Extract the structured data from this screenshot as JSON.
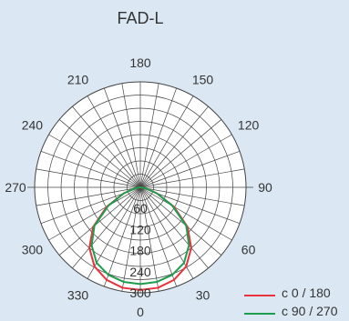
{
  "chart_data": {
    "type": "polar",
    "title": "FAD-L",
    "angle_ticks": [
      "0",
      "30",
      "60",
      "90",
      "120",
      "150",
      "180",
      "210",
      "240",
      "270",
      "300",
      "330"
    ],
    "radial_ticks": [
      "60",
      "120",
      "180",
      "240",
      "300"
    ],
    "rmax": 300,
    "grid": true,
    "legend_position": "bottom-right",
    "series": [
      {
        "name": "c 0 / 180",
        "color": "#e8323c",
        "theta": [
          -90,
          -80,
          -70,
          -60,
          -50,
          -40,
          -30,
          -20,
          -10,
          0,
          10,
          20,
          30,
          40,
          50,
          60,
          70,
          80,
          90
        ],
        "r": [
          0,
          15,
          50,
          110,
          175,
          225,
          260,
          280,
          290,
          292,
          290,
          280,
          260,
          225,
          175,
          110,
          50,
          15,
          0
        ]
      },
      {
        "name": "c 90 / 270",
        "color": "#1f9d4f",
        "theta": [
          -90,
          -80,
          -70,
          -60,
          -50,
          -40,
          -30,
          -20,
          -10,
          0,
          10,
          20,
          30,
          40,
          50,
          60,
          70,
          80,
          90
        ],
        "r": [
          0,
          15,
          50,
          105,
          170,
          215,
          248,
          265,
          273,
          275,
          273,
          265,
          248,
          215,
          170,
          105,
          50,
          15,
          0
        ]
      }
    ]
  }
}
